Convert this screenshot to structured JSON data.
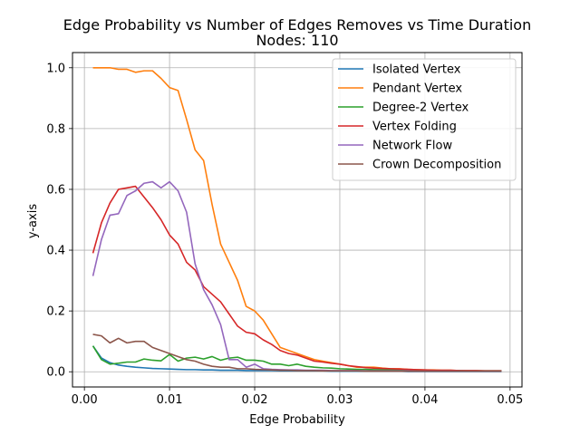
{
  "chart_data": {
    "type": "line",
    "title": "Edge Probability vs Number of Edges Removes vs Time Duration",
    "subtitle": "Nodes: 110",
    "xlabel": "Edge Probability",
    "ylabel": "y-axis",
    "xlim": [
      -0.0014,
      0.0514
    ],
    "ylim": [
      -0.05,
      1.05
    ],
    "xticks": [
      0.0,
      0.01,
      0.02,
      0.03,
      0.04,
      0.05
    ],
    "xtick_labels": [
      "0.00",
      "0.01",
      "0.02",
      "0.03",
      "0.04",
      "0.05"
    ],
    "yticks": [
      0.0,
      0.2,
      0.4,
      0.6,
      0.8,
      1.0
    ],
    "ytick_labels": [
      "0.0",
      "0.2",
      "0.4",
      "0.6",
      "0.8",
      "1.0"
    ],
    "grid": true,
    "legend_position": "top-right",
    "x": [
      0.001,
      0.002,
      0.003,
      0.004,
      0.005,
      0.006,
      0.007,
      0.008,
      0.009,
      0.01,
      0.011,
      0.012,
      0.013,
      0.014,
      0.015,
      0.016,
      0.017,
      0.018,
      0.019,
      0.02,
      0.021,
      0.022,
      0.023,
      0.024,
      0.025,
      0.026,
      0.027,
      0.028,
      0.029,
      0.03,
      0.031,
      0.032,
      0.033,
      0.034,
      0.035,
      0.036,
      0.037,
      0.038,
      0.039,
      0.04,
      0.041,
      0.042,
      0.043,
      0.044,
      0.045,
      0.046,
      0.047,
      0.048,
      0.049
    ],
    "series": [
      {
        "name": "Isolated Vertex",
        "color": "#1f77b4",
        "values": [
          0.085,
          0.045,
          0.03,
          0.022,
          0.018,
          0.015,
          0.013,
          0.011,
          0.01,
          0.009,
          0.008,
          0.007,
          0.007,
          0.006,
          0.006,
          0.005,
          0.005,
          0.005,
          0.004,
          0.004,
          0.004,
          0.004,
          0.003,
          0.003,
          0.003,
          0.003,
          0.003,
          0.003,
          0.002,
          0.002,
          0.002,
          0.002,
          0.002,
          0.002,
          0.002,
          0.002,
          0.002,
          0.001,
          0.001,
          0.001,
          0.001,
          0.001,
          0.001,
          0.001,
          0.001,
          0.001,
          0.001,
          0.001,
          0.001
        ]
      },
      {
        "name": "Pendant Vertex",
        "color": "#ff7f0e",
        "values": [
          1.0,
          1.0,
          1.0,
          0.995,
          0.995,
          0.985,
          0.99,
          0.99,
          0.965,
          0.935,
          0.925,
          0.83,
          0.73,
          0.695,
          0.55,
          0.42,
          0.36,
          0.3,
          0.215,
          0.2,
          0.17,
          0.125,
          0.08,
          0.07,
          0.06,
          0.05,
          0.04,
          0.035,
          0.03,
          0.025,
          0.02,
          0.015,
          0.015,
          0.015,
          0.012,
          0.01,
          0.01,
          0.008,
          0.007,
          0.006,
          0.006,
          0.005,
          0.005,
          0.004,
          0.004,
          0.004,
          0.003,
          0.003,
          0.003
        ]
      },
      {
        "name": "Degree-2 Vertex",
        "color": "#2ca02c",
        "values": [
          0.085,
          0.04,
          0.025,
          0.028,
          0.032,
          0.032,
          0.042,
          0.038,
          0.036,
          0.057,
          0.035,
          0.045,
          0.048,
          0.042,
          0.05,
          0.038,
          0.045,
          0.048,
          0.038,
          0.038,
          0.035,
          0.025,
          0.025,
          0.02,
          0.025,
          0.018,
          0.015,
          0.013,
          0.012,
          0.01,
          0.009,
          0.008,
          0.008,
          0.007,
          0.007,
          0.006,
          0.006,
          0.005,
          0.005,
          0.005,
          0.004,
          0.004,
          0.004,
          0.004,
          0.003,
          0.003,
          0.003,
          0.003,
          0.003
        ]
      },
      {
        "name": "Vertex Folding",
        "color": "#d62728",
        "values": [
          0.39,
          0.49,
          0.555,
          0.6,
          0.605,
          0.61,
          0.575,
          0.54,
          0.5,
          0.45,
          0.42,
          0.36,
          0.335,
          0.28,
          0.255,
          0.23,
          0.19,
          0.15,
          0.13,
          0.125,
          0.105,
          0.09,
          0.07,
          0.06,
          0.055,
          0.045,
          0.035,
          0.032,
          0.028,
          0.025,
          0.02,
          0.017,
          0.014,
          0.012,
          0.011,
          0.01,
          0.009,
          0.008,
          0.007,
          0.006,
          0.005,
          0.005,
          0.005,
          0.004,
          0.004,
          0.004,
          0.003,
          0.003,
          0.003
        ]
      },
      {
        "name": "Network Flow",
        "color": "#9467bd",
        "values": [
          0.315,
          0.435,
          0.515,
          0.52,
          0.58,
          0.595,
          0.62,
          0.625,
          0.605,
          0.625,
          0.595,
          0.525,
          0.355,
          0.27,
          0.22,
          0.155,
          0.04,
          0.04,
          0.015,
          0.025,
          0.01,
          0.008,
          0.007,
          0.006,
          0.006,
          0.005,
          0.005,
          0.005,
          0.004,
          0.004,
          0.004,
          0.004,
          0.003,
          0.003,
          0.003,
          0.003,
          0.003,
          0.003,
          0.002,
          0.002,
          0.002,
          0.002,
          0.002,
          0.002,
          0.002,
          0.002,
          0.002,
          0.002,
          0.002
        ]
      },
      {
        "name": "Crown Decomposition",
        "color": "#8c564b",
        "values": [
          0.123,
          0.118,
          0.095,
          0.11,
          0.095,
          0.1,
          0.1,
          0.08,
          0.07,
          0.06,
          0.05,
          0.04,
          0.035,
          0.025,
          0.018,
          0.015,
          0.015,
          0.01,
          0.01,
          0.008,
          0.007,
          0.006,
          0.005,
          0.005,
          0.004,
          0.004,
          0.004,
          0.003,
          0.003,
          0.003,
          0.003,
          0.003,
          0.002,
          0.002,
          0.002,
          0.002,
          0.002,
          0.002,
          0.002,
          0.002,
          0.002,
          0.002,
          0.002,
          0.002,
          0.002,
          0.002,
          0.002,
          0.002,
          0.002
        ]
      }
    ]
  }
}
